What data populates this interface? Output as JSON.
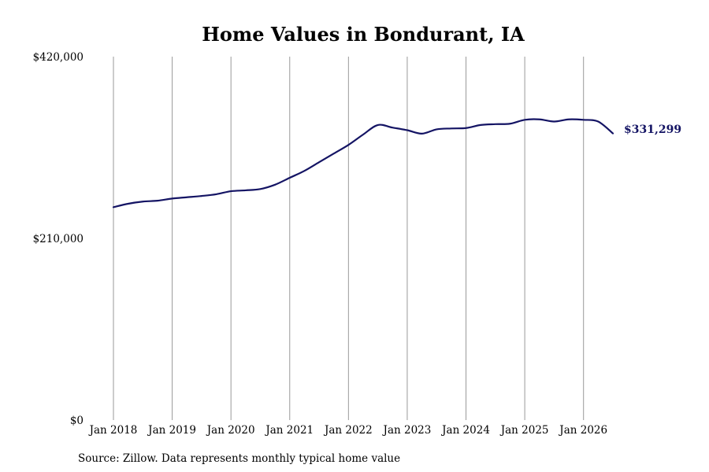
{
  "chart_data": {
    "type": "line",
    "title": "Home Values in Bondurant, IA",
    "xlabel": "",
    "ylabel": "",
    "source_note": "Source: Zillow. Data represents monthly typical home value",
    "ylim": [
      0,
      420000
    ],
    "y_ticks": [
      {
        "value": 0,
        "label": "$0"
      },
      {
        "value": 210000,
        "label": "$210,000"
      },
      {
        "value": 420000,
        "label": "$420,000"
      }
    ],
    "x_ticks": [
      {
        "value": "2018-01",
        "label": "Jan 2018"
      },
      {
        "value": "2019-01",
        "label": "Jan 2019"
      },
      {
        "value": "2020-01",
        "label": "Jan 2020"
      },
      {
        "value": "2021-01",
        "label": "Jan 2021"
      },
      {
        "value": "2022-01",
        "label": "Jan 2022"
      },
      {
        "value": "2023-01",
        "label": "Jan 2023"
      },
      {
        "value": "2024-01",
        "label": "Jan 2024"
      },
      {
        "value": "2025-01",
        "label": "Jan 2025"
      },
      {
        "value": "2026-01",
        "label": "Jan 2026"
      }
    ],
    "xlim": [
      "2018-01",
      "2026-07"
    ],
    "grid": {
      "vertical": true,
      "horizontal": false
    },
    "end_label": "$331,299",
    "series": [
      {
        "color": "#141464",
        "x": [
          "2018-01",
          "2018-04",
          "2018-07",
          "2018-10",
          "2019-01",
          "2019-04",
          "2019-07",
          "2019-10",
          "2020-01",
          "2020-04",
          "2020-07",
          "2020-10",
          "2021-01",
          "2021-04",
          "2021-07",
          "2021-10",
          "2022-01",
          "2022-04",
          "2022-07",
          "2022-10",
          "2023-01",
          "2023-04",
          "2023-07",
          "2023-10",
          "2024-01",
          "2024-04",
          "2024-07",
          "2024-10",
          "2025-01",
          "2025-04",
          "2025-07",
          "2025-10",
          "2026-01",
          "2026-04",
          "2026-07"
        ],
        "values": [
          246000,
          250000,
          252500,
          253500,
          256000,
          257500,
          259000,
          261000,
          264500,
          265500,
          267000,
          272000,
          280000,
          288000,
          298000,
          308000,
          318000,
          330000,
          341000,
          338000,
          335000,
          331000,
          336000,
          337000,
          337500,
          341000,
          342000,
          342500,
          347000,
          347500,
          345000,
          347500,
          347000,
          345000,
          331299
        ]
      }
    ]
  }
}
